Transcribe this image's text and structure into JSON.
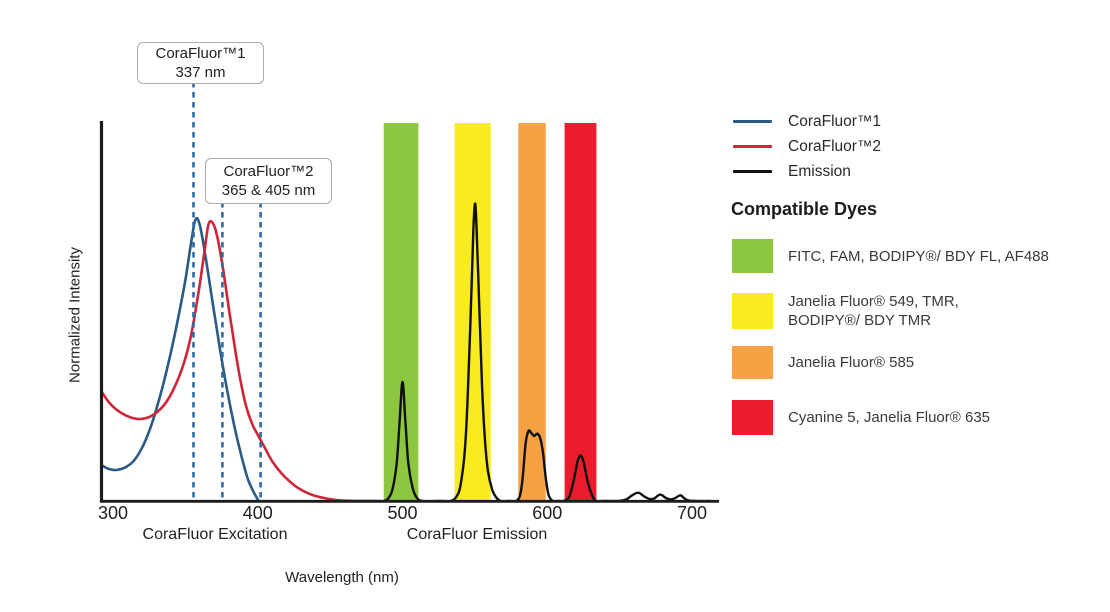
{
  "chart_data": {
    "type": "line",
    "title": "",
    "xlabel": "Wavelength (nm)",
    "ylabel": "Normalized Intensity",
    "x_ticks": [
      300,
      400,
      500,
      600,
      700
    ],
    "x_range_nm": [
      292,
      718
    ],
    "y_range": [
      0,
      1
    ],
    "grid": false,
    "axis_section_labels": [
      {
        "text": "CoraFluor Excitation"
      },
      {
        "text": "CoraFluor Emission"
      }
    ],
    "annotations": [
      {
        "line1": "CoraFluor™1",
        "line2": "337 nm",
        "marks_nm": [
          355.6
        ]
      },
      {
        "line1": "CoraFluor™2",
        "line2": "365 & 405 nm",
        "marks_nm": [
          375.6,
          402
        ]
      }
    ],
    "dashed_line_color": "#2f6ba3",
    "bands": [
      {
        "id": "green",
        "color": "#8dc63f",
        "range_nm": [
          487,
          511
        ]
      },
      {
        "id": "yellow",
        "color": "#f8ec20",
        "range_nm": [
          536,
          561
        ]
      },
      {
        "id": "orange",
        "color": "#f6a143",
        "range_nm": [
          580,
          599
        ]
      },
      {
        "id": "red",
        "color": "#eb1c2c",
        "range_nm": [
          612,
          634
        ]
      }
    ],
    "series": [
      {
        "name": "CoraFluor™1",
        "role": "excitation",
        "color": "#2a5a86",
        "width": 2.6,
        "points": [
          [
            292,
            0.095
          ],
          [
            297,
            0.085
          ],
          [
            302,
            0.082
          ],
          [
            308,
            0.088
          ],
          [
            314,
            0.105
          ],
          [
            320,
            0.14
          ],
          [
            326,
            0.195
          ],
          [
            332,
            0.27
          ],
          [
            338,
            0.36
          ],
          [
            344,
            0.465
          ],
          [
            350,
            0.585
          ],
          [
            354,
            0.685
          ],
          [
            357,
            0.745
          ],
          [
            360,
            0.73
          ],
          [
            364,
            0.645
          ],
          [
            369,
            0.52
          ],
          [
            374,
            0.4
          ],
          [
            379,
            0.29
          ],
          [
            384,
            0.195
          ],
          [
            389,
            0.115
          ],
          [
            393,
            0.06
          ],
          [
            397,
            0.025
          ],
          [
            400,
            0.004
          ],
          [
            401,
            0
          ]
        ]
      },
      {
        "name": "CoraFluor™2",
        "role": "excitation",
        "color": "#d02538",
        "width": 2.6,
        "points": [
          [
            292,
            0.29
          ],
          [
            297,
            0.262
          ],
          [
            302,
            0.243
          ],
          [
            308,
            0.228
          ],
          [
            314,
            0.219
          ],
          [
            319,
            0.217
          ],
          [
            325,
            0.222
          ],
          [
            331,
            0.237
          ],
          [
            337,
            0.263
          ],
          [
            343,
            0.305
          ],
          [
            349,
            0.365
          ],
          [
            354,
            0.44
          ],
          [
            359,
            0.55
          ],
          [
            363,
            0.655
          ],
          [
            366,
            0.732
          ],
          [
            369,
            0.735
          ],
          [
            372,
            0.7
          ],
          [
            376,
            0.615
          ],
          [
            380,
            0.51
          ],
          [
            384,
            0.41
          ],
          [
            388,
            0.32
          ],
          [
            392,
            0.25
          ],
          [
            396,
            0.205
          ],
          [
            400,
            0.175
          ],
          [
            405,
            0.14
          ],
          [
            410,
            0.105
          ],
          [
            416,
            0.075
          ],
          [
            422,
            0.052
          ],
          [
            428,
            0.034
          ],
          [
            435,
            0.02
          ],
          [
            442,
            0.011
          ],
          [
            450,
            0.005
          ],
          [
            458,
            0.001
          ],
          [
            465,
            0
          ]
        ]
      },
      {
        "name": "Emission",
        "role": "emission",
        "color": "#101010",
        "width": 2.4,
        "points": [
          [
            455,
            0
          ],
          [
            483,
            0
          ],
          [
            487,
            0
          ],
          [
            490,
            0.006
          ],
          [
            493,
            0.03
          ],
          [
            496,
            0.1
          ],
          [
            498,
            0.21
          ],
          [
            500,
            0.315
          ],
          [
            502,
            0.21
          ],
          [
            504,
            0.1
          ],
          [
            507,
            0.035
          ],
          [
            510,
            0.008
          ],
          [
            514,
            0
          ],
          [
            525,
            0
          ],
          [
            533,
            0
          ],
          [
            537,
            0.01
          ],
          [
            540,
            0.04
          ],
          [
            543,
            0.13
          ],
          [
            545,
            0.27
          ],
          [
            547,
            0.48
          ],
          [
            549,
            0.72
          ],
          [
            550,
            0.786
          ],
          [
            551,
            0.74
          ],
          [
            553,
            0.52
          ],
          [
            555,
            0.3
          ],
          [
            557,
            0.16
          ],
          [
            559,
            0.08
          ],
          [
            562,
            0.03
          ],
          [
            565,
            0.008
          ],
          [
            568,
            0
          ],
          [
            574,
            0
          ],
          [
            578,
            0
          ],
          [
            581,
            0.012
          ],
          [
            583,
            0.06
          ],
          [
            585,
            0.15
          ],
          [
            587,
            0.185
          ],
          [
            589,
            0.18
          ],
          [
            591,
            0.172
          ],
          [
            593,
            0.178
          ],
          [
            595,
            0.168
          ],
          [
            597,
            0.13
          ],
          [
            599,
            0.06
          ],
          [
            601,
            0.015
          ],
          [
            604,
            0
          ],
          [
            608,
            0
          ],
          [
            611,
            0
          ],
          [
            615,
            0.01
          ],
          [
            618,
            0.05
          ],
          [
            621,
            0.105
          ],
          [
            623,
            0.12
          ],
          [
            625,
            0.105
          ],
          [
            628,
            0.05
          ],
          [
            631,
            0.015
          ],
          [
            634,
            0
          ],
          [
            640,
            0
          ],
          [
            650,
            0
          ],
          [
            655,
            0.005
          ],
          [
            659,
            0.016
          ],
          [
            663,
            0.022
          ],
          [
            667,
            0.012
          ],
          [
            671,
            0.005
          ],
          [
            674,
            0.007
          ],
          [
            678,
            0.017
          ],
          [
            682,
            0.008
          ],
          [
            685,
            0.004
          ],
          [
            688,
            0.007
          ],
          [
            692,
            0.015
          ],
          [
            695,
            0.006
          ],
          [
            698,
            0.001
          ],
          [
            702,
            0
          ],
          [
            712,
            0
          ]
        ]
      }
    ],
    "legend": [
      {
        "label": "CoraFluor™1",
        "color": "#2a5a86"
      },
      {
        "label": "CoraFluor™2",
        "color": "#d02538"
      },
      {
        "label": "Emission",
        "color": "#101010"
      }
    ],
    "compatible_dyes": {
      "heading": "Compatible Dyes",
      "items": [
        {
          "color": "#8dc63f",
          "swatch_h": 34,
          "label_lines": [
            "FITC, FAM, BODIPY®/ BDY FL, AF488"
          ]
        },
        {
          "color": "#f8ec20",
          "swatch_h": 36,
          "label_lines": [
            "Janelia Fluor® 549, TMR,",
            "BODIPY®/ BDY TMR"
          ]
        },
        {
          "color": "#f6a143",
          "swatch_h": 33,
          "label_lines": [
            "Janelia Fluor® 585"
          ]
        },
        {
          "color": "#eb1c2c",
          "swatch_h": 35,
          "label_lines": [
            "Cyanine 5, Janelia Fluor® 635"
          ]
        }
      ]
    }
  }
}
